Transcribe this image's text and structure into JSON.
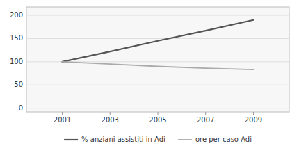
{
  "chart_data": {
    "type": "line",
    "x": [
      2001,
      2003,
      2005,
      2007,
      2009
    ],
    "series": [
      {
        "name": "% anziani assistiti in Adi",
        "color": "#555555",
        "values": [
          100,
          122,
          145,
          167,
          190
        ]
      },
      {
        "name": "ore per caso Adi",
        "color": "#aaaaaa",
        "values": [
          100,
          95,
          90,
          86,
          83
        ]
      }
    ],
    "xlim": [
      1999.5,
      2010.5
    ],
    "ylim": [
      -8,
      218
    ],
    "xticks": [
      2001,
      2003,
      2005,
      2007,
      2009
    ],
    "yticks": [
      0,
      50,
      100,
      150,
      200
    ],
    "grid": true
  }
}
